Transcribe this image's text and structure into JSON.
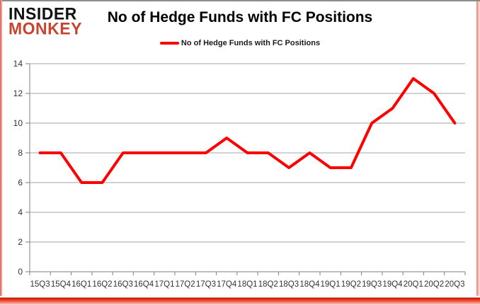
{
  "logo": {
    "line1": "INSIDER",
    "line2": "MONKEY",
    "color1": "#111111",
    "color2": "#c5452e"
  },
  "title": "No of Hedge Funds with FC Positions",
  "legend": {
    "label": "No of Hedge Funds with FC Positions",
    "marker_color": "#fe0000"
  },
  "chart_data": {
    "type": "line",
    "title": "No of Hedge Funds with FC Positions",
    "categories": [
      "15Q3",
      "15Q4",
      "16Q1",
      "16Q2",
      "16Q3",
      "16Q4",
      "17Q1",
      "17Q2",
      "17Q3",
      "17Q4",
      "18Q1",
      "18Q2",
      "18Q3",
      "18Q4",
      "19Q1",
      "19Q2",
      "19Q3",
      "19Q4",
      "20Q1",
      "20Q2",
      "20Q3"
    ],
    "series": [
      {
        "name": "No of Hedge Funds with FC Positions",
        "color": "#fe0000",
        "values": [
          8,
          8,
          6,
          6,
          8,
          8,
          8,
          8,
          8,
          9,
          8,
          8,
          7,
          8,
          7,
          7,
          10,
          11,
          13,
          12,
          10
        ]
      }
    ],
    "xlabel": "",
    "ylabel": "",
    "ylim": [
      0,
      14
    ],
    "yticks": [
      0,
      2,
      4,
      6,
      8,
      10,
      12,
      14
    ],
    "grid": true,
    "legend_position": "top",
    "gridline_color": "#a6a6a6",
    "axis_color": "#7f7f7f",
    "line_width": 4
  }
}
